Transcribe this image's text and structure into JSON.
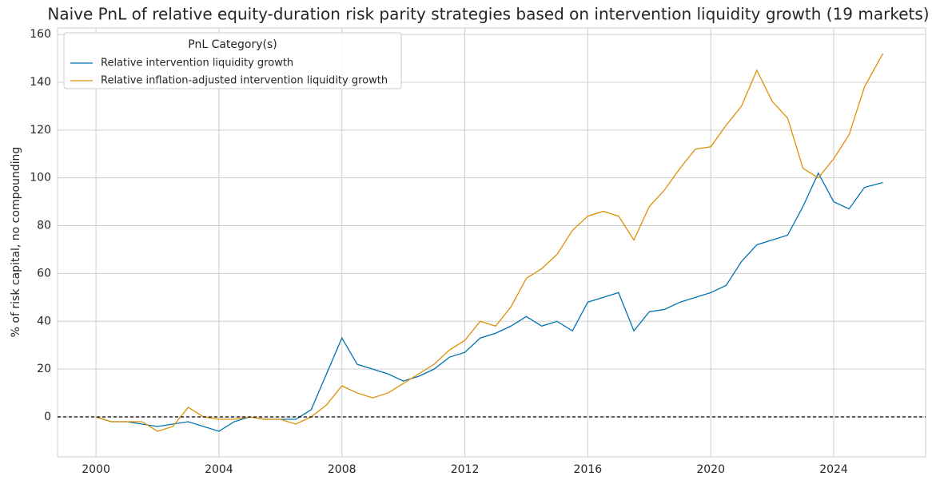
{
  "chart_data": {
    "type": "line",
    "title": "Naive PnL of relative equity-duration risk parity strategies based on intervention liquidity growth (19 markets)",
    "y_label": "% of risk capital, no compounding",
    "legend_title": "PnL Category(s)",
    "legend_position": "upper left",
    "grid": true,
    "hline": 0,
    "x": [
      2000,
      2000.5,
      2001,
      2001.5,
      2002,
      2002.5,
      2003,
      2003.5,
      2004,
      2004.5,
      2005,
      2005.5,
      2006,
      2006.5,
      2007,
      2007.5,
      2008,
      2008.5,
      2009,
      2009.5,
      2010,
      2010.5,
      2011,
      2011.5,
      2012,
      2012.5,
      2013,
      2013.5,
      2014,
      2014.5,
      2015,
      2015.5,
      2016,
      2016.5,
      2017,
      2017.5,
      2018,
      2018.5,
      2019,
      2019.5,
      2020,
      2020.5,
      2021,
      2021.5,
      2022,
      2022.5,
      2023,
      2023.5,
      2024,
      2024.5,
      2025,
      2025.6
    ],
    "series": [
      {
        "name": "Relative intervention liquidity growth",
        "color": "#0173b2",
        "values": [
          0,
          -2,
          -2,
          -3,
          -4,
          -3,
          -2,
          -4,
          -6,
          -2,
          0,
          -1,
          -1,
          -1,
          3,
          18,
          33,
          22,
          20,
          18,
          15,
          17,
          20,
          25,
          27,
          33,
          35,
          38,
          42,
          38,
          40,
          36,
          48,
          50,
          52,
          36,
          44,
          45,
          48,
          50,
          52,
          55,
          65,
          72,
          74,
          76,
          88,
          102,
          90,
          87,
          96,
          98
        ]
      },
      {
        "name": "Relative inflation-adjusted intervention liquidity growth",
        "color": "#de8f05",
        "values": [
          0,
          -2,
          -2,
          -2,
          -6,
          -4,
          4,
          0,
          -1,
          -1,
          0,
          -1,
          -1,
          -3,
          0,
          5,
          13,
          10,
          8,
          10,
          14,
          18,
          22,
          28,
          32,
          40,
          38,
          46,
          58,
          62,
          68,
          78,
          84,
          86,
          84,
          74,
          88,
          95,
          104,
          112,
          113,
          122,
          130,
          145,
          132,
          125,
          104,
          100,
          108,
          118,
          138,
          152
        ]
      }
    ],
    "xlim": [
      1998.75,
      2026.99
    ],
    "xticks": [
      2000,
      2004,
      2008,
      2012,
      2016,
      2020,
      2024
    ],
    "ylim": [
      -16.7,
      162.7
    ],
    "yticks": [
      0,
      20,
      40,
      60,
      80,
      100,
      120,
      140,
      160
    ]
  }
}
